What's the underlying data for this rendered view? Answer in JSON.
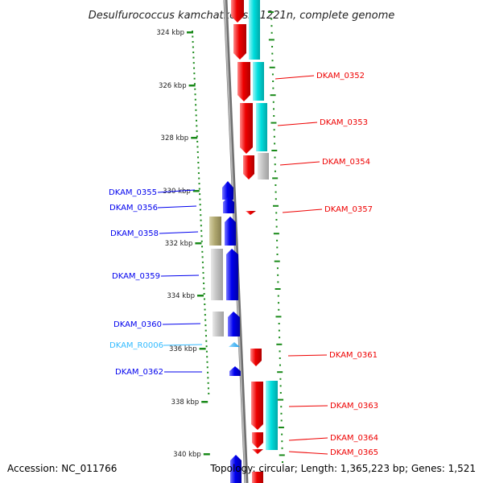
{
  "title": "Desulfurococcus kamchatkensis 1221n, complete genome",
  "footer": {
    "accession": "Accession: NC_011766",
    "summary": "Topology: circular; Length: 1,365,223 bp; Genes: 1,521"
  },
  "colors": {
    "reverse_cds": "#0000ee",
    "forward_cds": "#ee0000",
    "reverse_orf": "#b0a870",
    "forward_orf": "#00dede",
    "hypothetical": "#c4c4c4",
    "rna": "#33bbff",
    "backbone": "#8c8c8c",
    "ticks": "#1a8a1a"
  },
  "ticks": [
    {
      "label": "324 kbp"
    },
    {
      "label": "326 kbp"
    },
    {
      "label": "328 kbp"
    },
    {
      "label": "330 kbp"
    },
    {
      "label": "332 kbp"
    },
    {
      "label": "334 kbp"
    },
    {
      "label": "336 kbp"
    },
    {
      "label": "338 kbp"
    },
    {
      "label": "340 kbp"
    }
  ],
  "genes_left": [
    {
      "label": "DKAM_0355",
      "color": "#0000ee"
    },
    {
      "label": "DKAM_0356",
      "color": "#0000ee"
    },
    {
      "label": "DKAM_0358",
      "color": "#0000ee"
    },
    {
      "label": "DKAM_0359",
      "color": "#0000ee"
    },
    {
      "label": "DKAM_0360",
      "color": "#0000ee"
    },
    {
      "label": "DKAM_R0006",
      "color": "#33bbff"
    },
    {
      "label": "DKAM_0362",
      "color": "#0000ee"
    }
  ],
  "genes_right": [
    {
      "label": "DKAM_0352",
      "color": "#ee0000"
    },
    {
      "label": "DKAM_0353",
      "color": "#ee0000"
    },
    {
      "label": "DKAM_0354",
      "color": "#ee0000"
    },
    {
      "label": "DKAM_0357",
      "color": "#ee0000"
    },
    {
      "label": "DKAM_0361",
      "color": "#ee0000"
    },
    {
      "label": "DKAM_0363",
      "color": "#ee0000"
    },
    {
      "label": "DKAM_0364",
      "color": "#ee0000"
    },
    {
      "label": "DKAM_0365",
      "color": "#ee0000"
    }
  ]
}
